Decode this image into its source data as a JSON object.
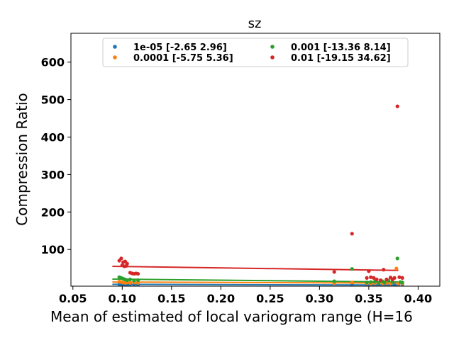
{
  "chart_data": {
    "type": "scatter",
    "title": "sz",
    "xlabel": "Mean of estimated of local variogram range (H=16",
    "ylabel": "Compression Ratio",
    "xlim": [
      0.048,
      0.422
    ],
    "ylim": [
      2,
      677
    ],
    "xticks": [
      0.05,
      0.1,
      0.15,
      0.2,
      0.25,
      0.3,
      0.35,
      0.4
    ],
    "xtick_labels": [
      "0.05",
      "0.10",
      "0.15",
      "0.20",
      "0.25",
      "0.30",
      "0.35",
      "0.40"
    ],
    "yticks": [
      100,
      200,
      300,
      400,
      500,
      600
    ],
    "ytick_labels": [
      "100",
      "200",
      "300",
      "400",
      "500",
      "600"
    ],
    "grid": false,
    "legend_position": "top",
    "series": [
      {
        "name": "1e-05 [-2.65  2.96]",
        "color": "#1f77b4",
        "points": [
          [
            0.097,
            7
          ],
          [
            0.099,
            7
          ],
          [
            0.101,
            6
          ],
          [
            0.103,
            7
          ],
          [
            0.105,
            6
          ],
          [
            0.108,
            7
          ],
          [
            0.112,
            6
          ],
          [
            0.116,
            6
          ],
          [
            0.333,
            6
          ],
          [
            0.348,
            6
          ],
          [
            0.352,
            5
          ],
          [
            0.356,
            6
          ],
          [
            0.36,
            6
          ],
          [
            0.364,
            5
          ],
          [
            0.368,
            6
          ],
          [
            0.372,
            6
          ],
          [
            0.376,
            5
          ],
          [
            0.38,
            6
          ],
          [
            0.384,
            6
          ]
        ],
        "fit": [
          [
            0.09,
            7
          ],
          [
            0.38,
            5
          ]
        ]
      },
      {
        "name": "0.0001 [-5.75  5.36]",
        "color": "#ff7f0e",
        "points": [
          [
            0.097,
            14
          ],
          [
            0.099,
            13
          ],
          [
            0.101,
            12
          ],
          [
            0.103,
            11
          ],
          [
            0.105,
            12
          ],
          [
            0.108,
            11
          ],
          [
            0.112,
            12
          ],
          [
            0.116,
            11
          ],
          [
            0.315,
            10
          ],
          [
            0.333,
            12
          ],
          [
            0.348,
            10
          ],
          [
            0.352,
            9
          ],
          [
            0.356,
            10
          ],
          [
            0.36,
            11
          ],
          [
            0.364,
            9
          ],
          [
            0.368,
            10
          ],
          [
            0.372,
            9
          ],
          [
            0.378,
            49
          ],
          [
            0.38,
            9
          ],
          [
            0.384,
            9
          ]
        ],
        "fit": [
          [
            0.09,
            13
          ],
          [
            0.38,
            10
          ]
        ]
      },
      {
        "name": "0.001 [-13.36   8.14]",
        "color": "#2ca02c",
        "points": [
          [
            0.097,
            26
          ],
          [
            0.099,
            24
          ],
          [
            0.101,
            22
          ],
          [
            0.103,
            20
          ],
          [
            0.105,
            18
          ],
          [
            0.108,
            20
          ],
          [
            0.112,
            17
          ],
          [
            0.116,
            18
          ],
          [
            0.315,
            15
          ],
          [
            0.333,
            48
          ],
          [
            0.348,
            12
          ],
          [
            0.352,
            13
          ],
          [
            0.356,
            14
          ],
          [
            0.36,
            11
          ],
          [
            0.364,
            15
          ],
          [
            0.366,
            12
          ],
          [
            0.37,
            17
          ],
          [
            0.374,
            13
          ],
          [
            0.379,
            76
          ],
          [
            0.382,
            13
          ],
          [
            0.384,
            12
          ]
        ],
        "fit": [
          [
            0.09,
            21
          ],
          [
            0.38,
            13
          ]
        ]
      },
      {
        "name": "0.01 [-19.15  34.62]",
        "color": "#d62728",
        "points": [
          [
            0.097,
            70
          ],
          [
            0.099,
            76
          ],
          [
            0.1,
            58
          ],
          [
            0.101,
            66
          ],
          [
            0.102,
            55
          ],
          [
            0.103,
            68
          ],
          [
            0.104,
            56
          ],
          [
            0.105,
            62
          ],
          [
            0.108,
            38
          ],
          [
            0.11,
            36
          ],
          [
            0.112,
            35
          ],
          [
            0.114,
            36
          ],
          [
            0.116,
            35
          ],
          [
            0.315,
            40
          ],
          [
            0.333,
            142
          ],
          [
            0.348,
            24
          ],
          [
            0.35,
            42
          ],
          [
            0.352,
            26
          ],
          [
            0.355,
            24
          ],
          [
            0.358,
            20
          ],
          [
            0.362,
            18
          ],
          [
            0.365,
            46
          ],
          [
            0.368,
            20
          ],
          [
            0.372,
            25
          ],
          [
            0.374,
            20
          ],
          [
            0.376,
            24
          ],
          [
            0.379,
            482
          ],
          [
            0.381,
            26
          ],
          [
            0.384,
            24
          ]
        ],
        "fit": [
          [
            0.09,
            55
          ],
          [
            0.38,
            44
          ]
        ]
      }
    ]
  }
}
